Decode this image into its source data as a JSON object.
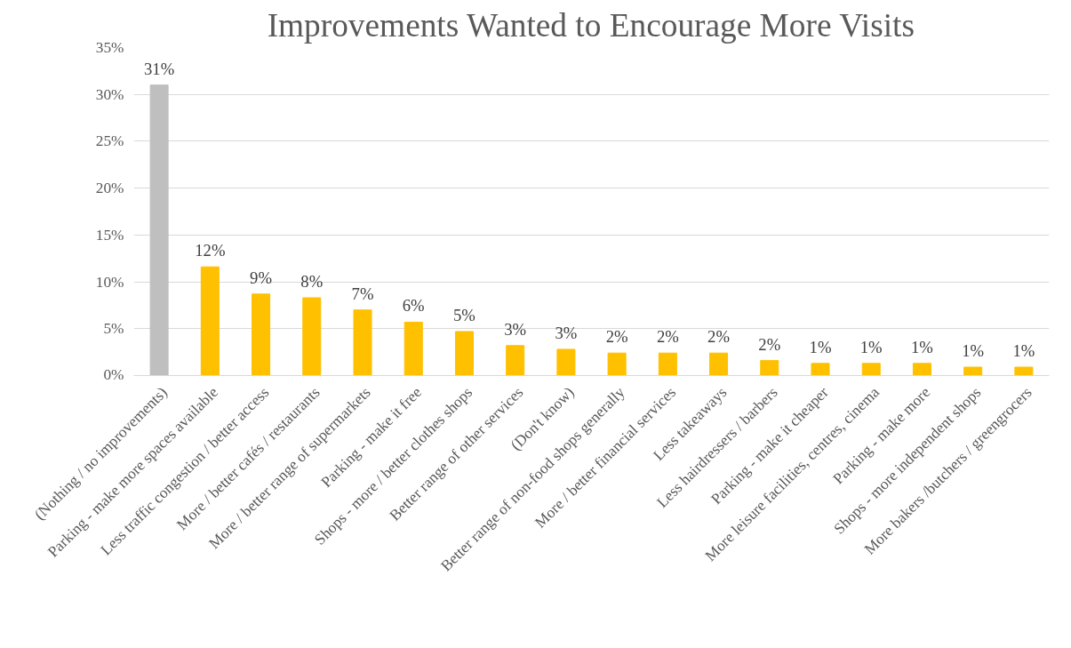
{
  "chart_data": {
    "type": "bar",
    "title": "Improvements Wanted to Encourage More Visits",
    "categories": [
      "(Nothing / no improvements)",
      "Parking - make more spaces available",
      "Less traffic congestion / better access",
      "More / better cafés / restaurants",
      "More / better range of supermarkets",
      "Parking - make it free",
      "Shops - more / better clothes shops",
      "Better range of other services",
      "(Don't know)",
      "Better range of non-food shops generally",
      "More / better financial services",
      "Less takeaways",
      "Less hairdressers / barbers",
      "Parking - make it cheaper",
      "More leisure facilities, centres, cinema",
      "Parking - make more",
      "Shops - more independent shops",
      "More bakers /butchers / greengrocers"
    ],
    "values": [
      31,
      11.6,
      8.7,
      8.3,
      7,
      5.7,
      4.7,
      3.2,
      2.8,
      2.4,
      2.4,
      2.4,
      1.6,
      1.3,
      1.3,
      1.3,
      0.9,
      0.9
    ],
    "value_labels": [
      "31%",
      "12%",
      "9%",
      "8%",
      "7%",
      "6%",
      "5%",
      "3%",
      "3%",
      "2%",
      "2%",
      "2%",
      "2%",
      "1%",
      "1%",
      "1%",
      "1%",
      "1%"
    ],
    "colors": [
      "#bfbfbf",
      "#ffc000",
      "#ffc000",
      "#ffc000",
      "#ffc000",
      "#ffc000",
      "#ffc000",
      "#ffc000",
      "#ffc000",
      "#ffc000",
      "#ffc000",
      "#ffc000",
      "#ffc000",
      "#ffc000",
      "#ffc000",
      "#ffc000",
      "#ffc000",
      "#ffc000"
    ],
    "ylim": [
      0,
      35
    ],
    "yticks": [
      {
        "value": 0,
        "label": "0%"
      },
      {
        "value": 5,
        "label": "5%"
      },
      {
        "value": 10,
        "label": "10%"
      },
      {
        "value": 15,
        "label": "15%"
      },
      {
        "value": 20,
        "label": "20%"
      },
      {
        "value": 25,
        "label": "25%"
      },
      {
        "value": 30,
        "label": "30%"
      },
      {
        "value": 35,
        "label": "35%"
      }
    ],
    "grid": "y"
  }
}
